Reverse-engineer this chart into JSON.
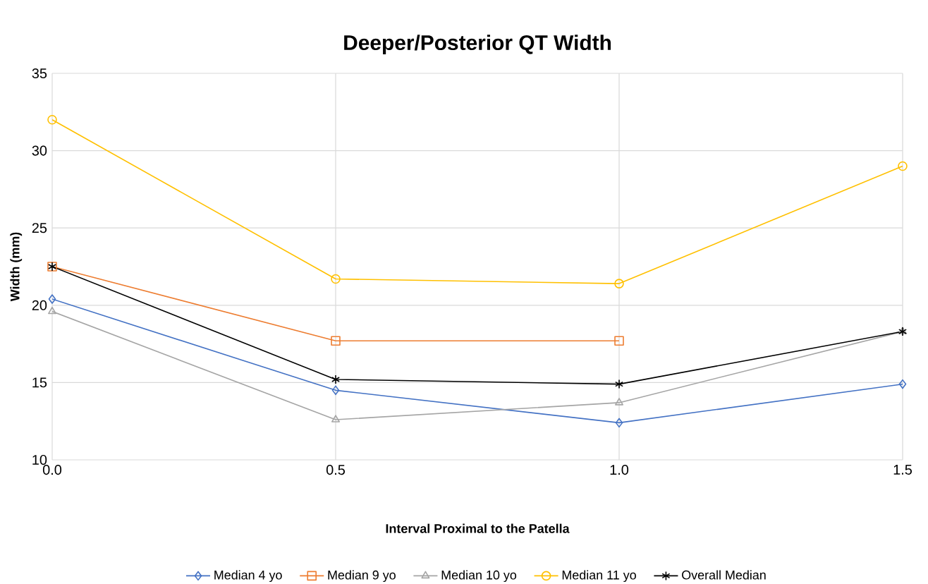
{
  "chart_data": {
    "type": "line",
    "title": "Deeper/Posterior QT Width",
    "xlabel": "Interval Proximal to the Patella",
    "ylabel": "Width (mm)",
    "x": [
      0,
      0.5,
      1.0,
      1.5
    ],
    "series": [
      {
        "name": "Median 4 yo",
        "color": "#4472c4",
        "marker": "diamond",
        "values": [
          20.4,
          14.5,
          12.4,
          14.9
        ]
      },
      {
        "name": "Median 9 yo",
        "color": "#ed7d31",
        "marker": "square",
        "values": [
          22.5,
          17.7,
          17.7,
          null
        ]
      },
      {
        "name": "Median 10 yo",
        "color": "#a5a5a5",
        "marker": "triangle",
        "values": [
          19.6,
          12.6,
          13.7,
          18.3
        ]
      },
      {
        "name": "Median 11 yo",
        "color": "#ffc000",
        "marker": "circle",
        "values": [
          32.0,
          21.7,
          21.4,
          29.0
        ]
      },
      {
        "name": "Overall Median",
        "color": "#000000",
        "marker": "cross",
        "values": [
          22.5,
          15.2,
          14.9,
          18.3
        ]
      }
    ],
    "xlim": [
      0,
      1.5
    ],
    "ylim": [
      10,
      35
    ],
    "xticks": [
      {
        "value": 0,
        "label": "0.0"
      },
      {
        "value": 0.5,
        "label": "0.5"
      },
      {
        "value": 1.0,
        "label": "1.0"
      },
      {
        "value": 1.5,
        "label": "1.5"
      }
    ],
    "yticks": [
      10,
      15,
      20,
      25,
      30,
      35
    ],
    "grid": true,
    "legend": "bottom",
    "line_style": "solid"
  }
}
